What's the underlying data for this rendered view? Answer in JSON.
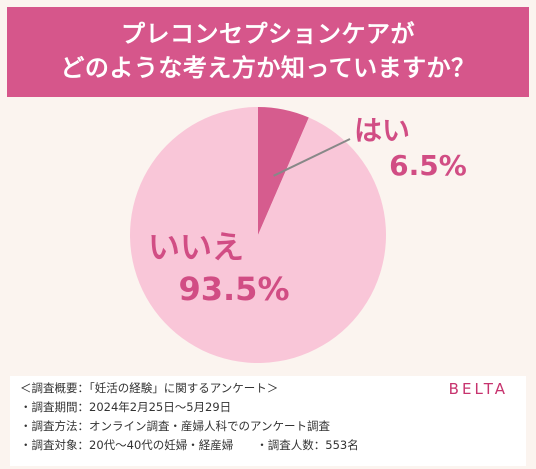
{
  "header": {
    "line1": "プレコンセプションケアが",
    "line2": "どのような考え方か知っていますか？"
  },
  "chart_data": {
    "type": "pie",
    "slices": [
      {
        "label": "はい",
        "value": 6.5,
        "value_label": "6.5%",
        "color": "#d65c8e"
      },
      {
        "label": "いいえ",
        "value": 93.5,
        "value_label": "93.5%",
        "color": "#f9c6d8"
      }
    ],
    "label_color": "#d14d84"
  },
  "footer": {
    "brand": "BELTA",
    "notes": [
      "＜調査概要：「妊活の経験」に関するアンケート＞",
      "・調査期間：2024年2月25日〜5月29日",
      "・調査方法：オンライン調査・産婦人科でのアンケート調査",
      "・調査対象：20代〜40代の妊婦・経産婦　　・調査人数：553名"
    ]
  }
}
